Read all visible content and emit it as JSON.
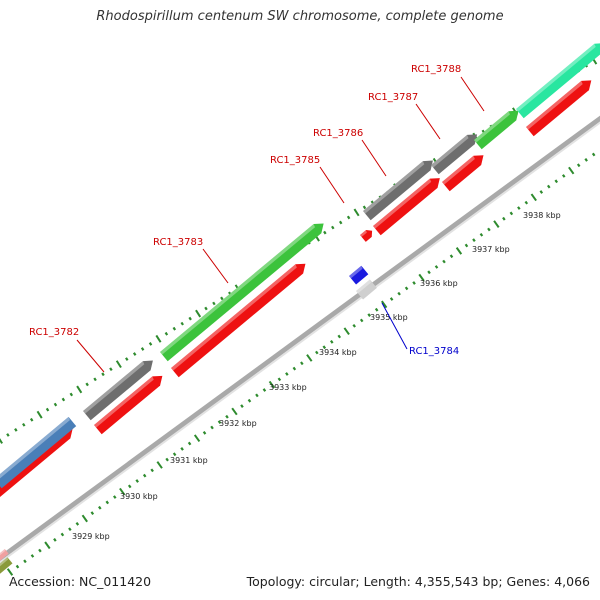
{
  "title": "Rhodospirillum centenum SW chromosome, complete genome",
  "footer": {
    "accession": "Accession: NC_011420",
    "summary": "Topology: circular; Length: 4,355,543 bp; Genes: 4,066"
  },
  "colors": {
    "tick": "#2e8b2e",
    "backbone": "#a9a9a9",
    "label_red": "#cc0000",
    "label_blue": "#0000cc",
    "gene_red": "#ee1111",
    "gene_green": "#3cc33c",
    "gene_gray": "#6e6e6e",
    "gene_teal": "#29e6a0",
    "gene_blue": "#4a7fb8",
    "gene_blue_small": "#1a1adf",
    "gene_lightgray": "#cfcfcf"
  },
  "kbp_labels": [
    "3929 kbp",
    "3930 kbp",
    "3931 kbp",
    "3932 kbp",
    "3933 kbp",
    "3934 kbp",
    "3935 kbp",
    "3936 kbp",
    "3937 kbp",
    "3938 kbp"
  ],
  "gene_labels": [
    {
      "name": "RC1_3782",
      "strand": "plus"
    },
    {
      "name": "RC1_3783",
      "strand": "plus"
    },
    {
      "name": "RC1_3784",
      "strand": "minus"
    },
    {
      "name": "RC1_3785",
      "strand": "plus"
    },
    {
      "name": "RC1_3786",
      "strand": "plus"
    },
    {
      "name": "RC1_3787",
      "strand": "plus"
    },
    {
      "name": "RC1_3788",
      "strand": "plus"
    }
  ]
}
